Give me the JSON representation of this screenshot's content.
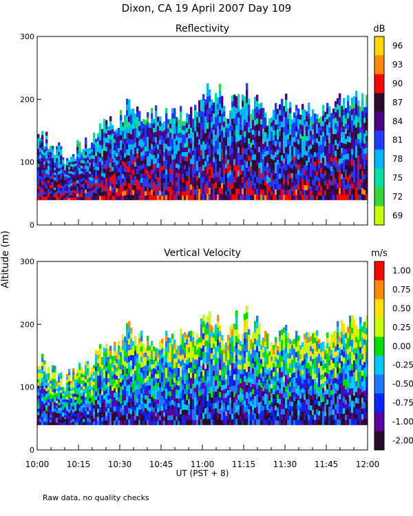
{
  "figure": {
    "title": "Dixon, CA 19 April 2007  Day 109",
    "footnote": "Raw data, no quality checks",
    "xlabel": "UT  (PST + 8)",
    "ylabel": "Altitude (m)"
  },
  "chart_data": [
    {
      "type": "heatmap",
      "title": "Reflectivity",
      "colorbar_unit": "dB",
      "colorbar_ticks": [
        "96",
        "93",
        "90",
        "87",
        "84",
        "81",
        "78",
        "75",
        "72",
        "69"
      ],
      "colorbar_colors": [
        "#ffd700",
        "#ff8c00",
        "#ff0000",
        "#2e0a2e",
        "#4b0082",
        "#1e3cff",
        "#00b4ff",
        "#00e0a0",
        "#3ad53a",
        "#c8ff00"
      ],
      "x_ticks": [
        "10:00",
        "10:15",
        "10:30",
        "10:45",
        "11:00",
        "11:15",
        "11:30",
        "11:45",
        "12:00"
      ],
      "y_ticks": [
        300,
        200,
        100,
        0
      ],
      "ylim": [
        0,
        300
      ],
      "xlim_minutes": [
        0,
        120
      ],
      "data_bottom_m": 40,
      "top_profile_minutes": [
        0,
        3,
        5,
        8,
        10,
        12,
        14,
        20,
        22,
        24,
        26,
        28,
        30,
        32,
        33,
        35,
        38,
        40,
        42,
        45,
        47,
        50,
        52,
        54,
        56,
        58,
        60,
        62,
        64,
        66,
        68,
        70,
        72,
        74,
        76,
        78,
        80,
        82,
        84,
        86,
        88,
        90,
        92,
        94,
        96,
        98,
        100,
        102,
        104,
        106,
        108,
        110,
        112,
        114,
        116,
        118,
        120
      ],
      "top_profile_m": [
        140,
        140,
        120,
        120,
        110,
        120,
        120,
        140,
        150,
        160,
        160,
        160,
        170,
        170,
        200,
        180,
        180,
        170,
        180,
        170,
        180,
        180,
        180,
        180,
        180,
        180,
        200,
        220,
        200,
        220,
        180,
        180,
        220,
        180,
        220,
        180,
        200,
        180,
        170,
        180,
        180,
        200,
        180,
        180,
        180,
        180,
        180,
        180,
        180,
        180,
        180,
        200,
        200,
        200,
        200,
        200,
        200
      ]
    },
    {
      "type": "heatmap",
      "title": "Vertical Velocity",
      "colorbar_unit": "m/s",
      "colorbar_ticks": [
        "1.00",
        "0.75",
        "0.50",
        "0.25",
        "0.00",
        "-0.25",
        "-0.50",
        "-0.75",
        "-1.00",
        "-2.00"
      ],
      "colorbar_colors": [
        "#ff0000",
        "#ff8c00",
        "#ffe000",
        "#c8ff00",
        "#00dd00",
        "#00c8ff",
        "#1e78ff",
        "#0028ff",
        "#5a00a0",
        "#2a0a2a"
      ],
      "x_ticks": [
        "10:00",
        "10:15",
        "10:30",
        "10:45",
        "11:00",
        "11:15",
        "11:30",
        "11:45",
        "12:00"
      ],
      "y_ticks": [
        300,
        200,
        100,
        0
      ],
      "ylim": [
        0,
        300
      ],
      "xlim_minutes": [
        0,
        120
      ],
      "data_bottom_m": 40,
      "top_profile_minutes": [
        0,
        3,
        5,
        8,
        10,
        12,
        14,
        20,
        22,
        24,
        26,
        28,
        30,
        32,
        33,
        35,
        38,
        40,
        42,
        45,
        47,
        50,
        52,
        54,
        56,
        58,
        60,
        62,
        64,
        66,
        68,
        70,
        72,
        74,
        76,
        78,
        80,
        82,
        84,
        86,
        88,
        90,
        92,
        94,
        96,
        98,
        100,
        102,
        104,
        106,
        108,
        110,
        112,
        114,
        116,
        118,
        120
      ],
      "top_profile_m": [
        140,
        140,
        120,
        120,
        110,
        120,
        120,
        140,
        150,
        160,
        160,
        160,
        170,
        170,
        200,
        180,
        180,
        170,
        180,
        170,
        180,
        180,
        180,
        180,
        180,
        180,
        200,
        220,
        200,
        220,
        180,
        180,
        220,
        180,
        220,
        180,
        200,
        180,
        170,
        180,
        180,
        200,
        180,
        180,
        180,
        180,
        180,
        180,
        180,
        180,
        180,
        200,
        200,
        200,
        200,
        200,
        200
      ]
    }
  ]
}
